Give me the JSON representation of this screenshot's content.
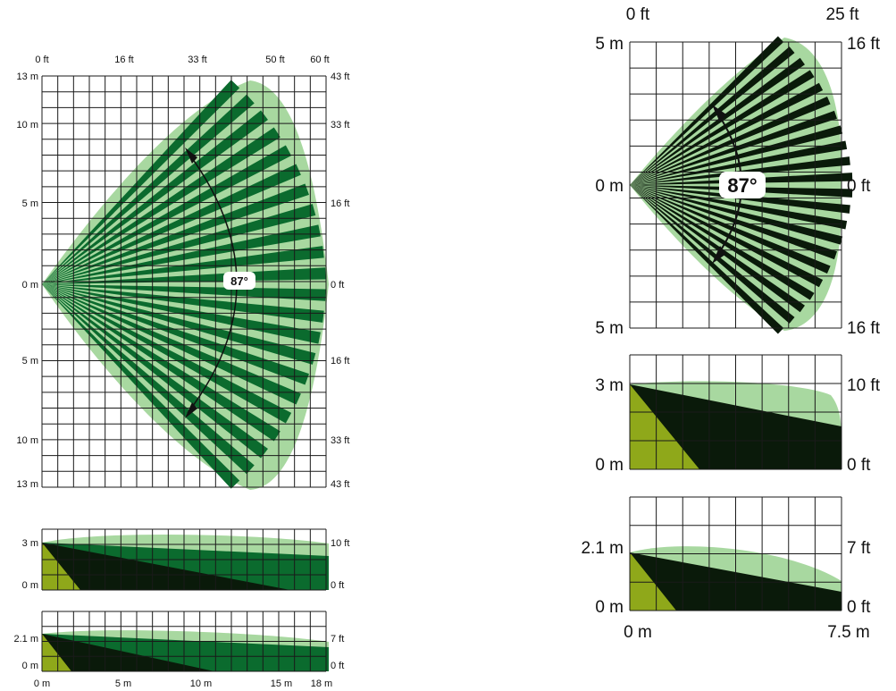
{
  "colors": {
    "grid": "#1a1a1a",
    "coverage_light": "#a8d8a0",
    "beam_green": "#0b6b2e",
    "beam_dark": "#0a1a0a",
    "floor_zone": "#8fa81a"
  },
  "left_panel": {
    "top_view": {
      "top_labels": [
        "0 ft",
        "16 ft",
        "33 ft",
        "50 ft",
        "60 ft"
      ],
      "left_labels": [
        "13 m",
        "10 m",
        "5 m",
        "0 m",
        "5 m",
        "10 m",
        "13 m"
      ],
      "right_labels": [
        "43 ft",
        "33 ft",
        "16 ft",
        "0 ft",
        "16 ft",
        "33 ft",
        "43 ft"
      ],
      "angle_label": "87°"
    },
    "side_view_3m": {
      "left_labels": [
        "3 m",
        "0 m"
      ],
      "right_labels": [
        "10 ft",
        "0 ft"
      ]
    },
    "side_view_2_1m": {
      "left_labels": [
        "2.1 m",
        "0 m"
      ],
      "right_labels": [
        "7 ft",
        "0 ft"
      ],
      "bottom_labels": [
        "0 m",
        "5 m",
        "10 m",
        "15 m",
        "18 m"
      ]
    }
  },
  "right_panel": {
    "top_view": {
      "top_labels": [
        "0 ft",
        "25 ft"
      ],
      "left_labels": [
        "5 m",
        "0 m",
        "5 m"
      ],
      "right_labels": [
        "16 ft",
        "0 ft",
        "16 ft"
      ],
      "angle_label": "87°"
    },
    "side_view_3m": {
      "left_labels": [
        "3 m",
        "0 m"
      ],
      "right_labels": [
        "10 ft",
        "0 ft"
      ]
    },
    "side_view_2_1m": {
      "left_labels": [
        "2.1 m",
        "0 m"
      ],
      "right_labels": [
        "7 ft",
        "0 ft"
      ],
      "bottom_labels": [
        "0 m",
        "7.5 m"
      ]
    }
  }
}
